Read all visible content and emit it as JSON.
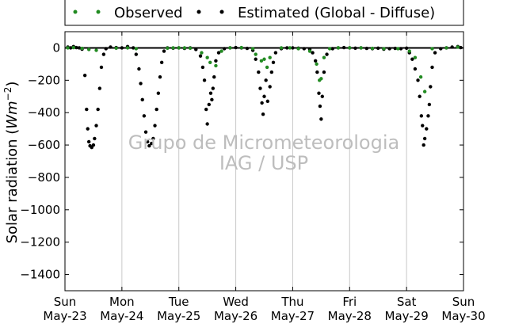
{
  "chart_data": {
    "type": "scatter",
    "title": "",
    "ylabel_prefix": "Solar radiation (",
    "ylabel_unit_base": "Wm",
    "ylabel_unit_exp": "−2",
    "ylabel_suffix": ")",
    "xlabel": "",
    "ylim": [
      -1500,
      100
    ],
    "yticks": [
      0,
      -200,
      -400,
      -600,
      -800,
      -1000,
      -1200,
      -1400
    ],
    "xlim": [
      0,
      7
    ],
    "xticks": [
      {
        "x": 0,
        "day": "Sun",
        "date": "May-23"
      },
      {
        "x": 1,
        "day": "Mon",
        "date": "May-24"
      },
      {
        "x": 2,
        "day": "Tue",
        "date": "May-25"
      },
      {
        "x": 3,
        "day": "Wed",
        "date": "May-26"
      },
      {
        "x": 4,
        "day": "Thu",
        "date": "May-27"
      },
      {
        "x": 5,
        "day": "Fri",
        "date": "May-28"
      },
      {
        "x": 6,
        "day": "Sat",
        "date": "May-29"
      },
      {
        "x": 7,
        "day": "Sun",
        "date": "May-30"
      }
    ],
    "grid": "vertical",
    "legend_position": "top",
    "series": [
      {
        "name": "Observed",
        "color": "#228b22",
        "points": [
          [
            0.05,
            0
          ],
          [
            0.15,
            2
          ],
          [
            0.3,
            -3
          ],
          [
            0.42,
            -10
          ],
          [
            0.55,
            -15
          ],
          [
            0.9,
            -2
          ],
          [
            1.1,
            0
          ],
          [
            1.25,
            -5
          ],
          [
            1.8,
            -2
          ],
          [
            1.9,
            0
          ],
          [
            2.0,
            0
          ],
          [
            2.1,
            0
          ],
          [
            2.2,
            -2
          ],
          [
            2.4,
            -30
          ],
          [
            2.5,
            -60
          ],
          [
            2.55,
            -90
          ],
          [
            2.65,
            -110
          ],
          [
            2.75,
            -20
          ],
          [
            2.9,
            0
          ],
          [
            3.1,
            2
          ],
          [
            3.3,
            -5
          ],
          [
            3.35,
            -40
          ],
          [
            3.45,
            -80
          ],
          [
            3.5,
            -70
          ],
          [
            3.55,
            -120
          ],
          [
            3.6,
            -60
          ],
          [
            3.8,
            0
          ],
          [
            3.95,
            0
          ],
          [
            4.1,
            -5
          ],
          [
            4.3,
            -20
          ],
          [
            4.42,
            -100
          ],
          [
            4.47,
            -200
          ],
          [
            4.5,
            -190
          ],
          [
            4.55,
            -60
          ],
          [
            4.65,
            -5
          ],
          [
            4.8,
            0
          ],
          [
            5.0,
            0
          ],
          [
            5.2,
            0
          ],
          [
            5.4,
            -3
          ],
          [
            5.6,
            -5
          ],
          [
            5.85,
            -5
          ],
          [
            6.05,
            -20
          ],
          [
            6.15,
            -60
          ],
          [
            6.25,
            -180
          ],
          [
            6.32,
            -270
          ],
          [
            6.45,
            -5
          ],
          [
            6.7,
            0
          ],
          [
            6.9,
            5
          ]
        ]
      },
      {
        "name": "Estimated (Global - Diffuse)",
        "color": "#000000",
        "points": [
          [
            0.05,
            5
          ],
          [
            0.1,
            0
          ],
          [
            0.15,
            8
          ],
          [
            0.2,
            2
          ],
          [
            0.25,
            0
          ],
          [
            0.3,
            -8
          ],
          [
            0.35,
            -170
          ],
          [
            0.38,
            -380
          ],
          [
            0.4,
            -500
          ],
          [
            0.42,
            -580
          ],
          [
            0.44,
            -605
          ],
          [
            0.47,
            -615
          ],
          [
            0.5,
            -600
          ],
          [
            0.52,
            -560
          ],
          [
            0.55,
            -480
          ],
          [
            0.58,
            -380
          ],
          [
            0.61,
            -250
          ],
          [
            0.64,
            -120
          ],
          [
            0.68,
            -40
          ],
          [
            0.72,
            -5
          ],
          [
            0.8,
            5
          ],
          [
            0.9,
            2
          ],
          [
            1.0,
            0
          ],
          [
            1.1,
            8
          ],
          [
            1.2,
            0
          ],
          [
            1.25,
            -40
          ],
          [
            1.3,
            -130
          ],
          [
            1.33,
            -220
          ],
          [
            1.36,
            -320
          ],
          [
            1.39,
            -420
          ],
          [
            1.42,
            -520
          ],
          [
            1.45,
            -580
          ],
          [
            1.48,
            -605
          ],
          [
            1.52,
            -590
          ],
          [
            1.55,
            -560
          ],
          [
            1.58,
            -480
          ],
          [
            1.61,
            -380
          ],
          [
            1.64,
            -280
          ],
          [
            1.67,
            -180
          ],
          [
            1.7,
            -90
          ],
          [
            1.74,
            -20
          ],
          [
            1.8,
            0
          ],
          [
            1.9,
            -2
          ],
          [
            2.0,
            0
          ],
          [
            2.1,
            -3
          ],
          [
            2.2,
            0
          ],
          [
            2.3,
            -10
          ],
          [
            2.38,
            -50
          ],
          [
            2.42,
            -120
          ],
          [
            2.45,
            -200
          ],
          [
            2.48,
            -380
          ],
          [
            2.5,
            -470
          ],
          [
            2.53,
            -350
          ],
          [
            2.56,
            -280
          ],
          [
            2.58,
            -320
          ],
          [
            2.6,
            -250
          ],
          [
            2.62,
            -180
          ],
          [
            2.65,
            -80
          ],
          [
            2.7,
            -30
          ],
          [
            2.8,
            -5
          ],
          [
            2.9,
            0
          ],
          [
            3.0,
            2
          ],
          [
            3.1,
            0
          ],
          [
            3.2,
            -3
          ],
          [
            3.3,
            -15
          ],
          [
            3.35,
            -70
          ],
          [
            3.4,
            -150
          ],
          [
            3.43,
            -250
          ],
          [
            3.46,
            -340
          ],
          [
            3.48,
            -410
          ],
          [
            3.5,
            -300
          ],
          [
            3.53,
            -200
          ],
          [
            3.56,
            -330
          ],
          [
            3.6,
            -240
          ],
          [
            3.63,
            -150
          ],
          [
            3.66,
            -90
          ],
          [
            3.7,
            -30
          ],
          [
            3.8,
            -5
          ],
          [
            3.9,
            0
          ],
          [
            4.0,
            0
          ],
          [
            4.1,
            -2
          ],
          [
            4.2,
            -5
          ],
          [
            4.3,
            -10
          ],
          [
            4.35,
            -30
          ],
          [
            4.4,
            -80
          ],
          [
            4.43,
            -150
          ],
          [
            4.46,
            -280
          ],
          [
            4.48,
            -360
          ],
          [
            4.5,
            -440
          ],
          [
            4.52,
            -300
          ],
          [
            4.55,
            -150
          ],
          [
            4.6,
            -40
          ],
          [
            4.7,
            -5
          ],
          [
            4.8,
            0
          ],
          [
            4.9,
            2
          ],
          [
            5.0,
            0
          ],
          [
            5.1,
            -2
          ],
          [
            5.2,
            0
          ],
          [
            5.3,
            -3
          ],
          [
            5.4,
            -5
          ],
          [
            5.5,
            -2
          ],
          [
            5.6,
            -8
          ],
          [
            5.7,
            -5
          ],
          [
            5.8,
            -3
          ],
          [
            5.9,
            -5
          ],
          [
            6.0,
            -2
          ],
          [
            6.05,
            -30
          ],
          [
            6.1,
            -70
          ],
          [
            6.15,
            -130
          ],
          [
            6.2,
            -200
          ],
          [
            6.23,
            -300
          ],
          [
            6.26,
            -420
          ],
          [
            6.28,
            -480
          ],
          [
            6.3,
            -600
          ],
          [
            6.32,
            -560
          ],
          [
            6.35,
            -500
          ],
          [
            6.38,
            -420
          ],
          [
            6.4,
            -350
          ],
          [
            6.42,
            -240
          ],
          [
            6.45,
            -120
          ],
          [
            6.5,
            -30
          ],
          [
            6.6,
            -5
          ],
          [
            6.7,
            0
          ],
          [
            6.8,
            5
          ],
          [
            6.9,
            8
          ],
          [
            6.95,
            2
          ]
        ]
      }
    ]
  },
  "watermark": {
    "line1": "Grupo de Micrometeorologia",
    "line2": "IAG / USP"
  }
}
